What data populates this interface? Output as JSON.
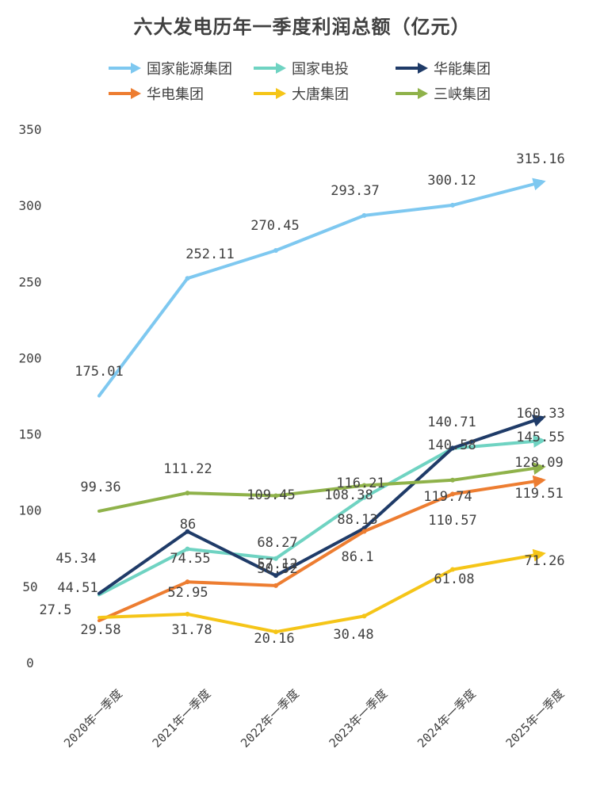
{
  "chart_data": {
    "type": "line",
    "title": "六大发电历年一季度利润总额（亿元）",
    "categories": [
      "2020年一季度",
      "2021年一季度",
      "2022年一季度",
      "2023年一季度",
      "2024年一季度",
      "2025年一季度"
    ],
    "ylim": [
      0,
      350
    ],
    "yticks": [
      "0",
      "50",
      "100",
      "150",
      "200",
      "250",
      "300",
      "350"
    ],
    "grid": false,
    "legend_position": "top",
    "series": [
      {
        "name": "国家能源集团",
        "color": "#7ec8f0",
        "values": [
          175.01,
          252.11,
          270.45,
          293.37,
          300.12,
          315.16
        ],
        "labels": [
          "175.01",
          "252.11",
          "270.45",
          "293.37",
          "300.12",
          "315.16"
        ]
      },
      {
        "name": "国家电投",
        "color": "#6fd3c2",
        "values": [
          44.51,
          74.55,
          68.27,
          108.38,
          140.58,
          145.55
        ],
        "labels": [
          "44.51",
          "74.55",
          "68.27",
          "108.38",
          "140.58",
          "145.55"
        ]
      },
      {
        "name": "华能集团",
        "color": "#1f3b68",
        "values": [
          45.34,
          86,
          57.12,
          88.13,
          140.71,
          160.33
        ],
        "labels": [
          "45.34",
          "86",
          "57.12",
          "88.13",
          "140.71",
          "160.33"
        ]
      },
      {
        "name": "华电集团",
        "color": "#ed7d31",
        "values": [
          27.5,
          52.95,
          50.52,
          86.1,
          110.57,
          119.51
        ],
        "labels": [
          "27.5",
          "52.95",
          "50.52",
          "86.1",
          "110.57",
          "119.51"
        ]
      },
      {
        "name": "大唐集团",
        "color": "#f5c518",
        "values": [
          29.58,
          31.78,
          20.16,
          30.48,
          61.08,
          71.26
        ],
        "labels": [
          "29.58",
          "31.78",
          "20.16",
          "30.48",
          "61.08",
          "71.26"
        ]
      },
      {
        "name": "三峡集团",
        "color": "#8fb24a",
        "values": [
          99.36,
          111.22,
          109.45,
          116.21,
          119.74,
          128.09
        ],
        "labels": [
          "99.36",
          "111.22",
          "109.45",
          "116.21",
          "119.74",
          "128.09"
        ]
      }
    ]
  }
}
